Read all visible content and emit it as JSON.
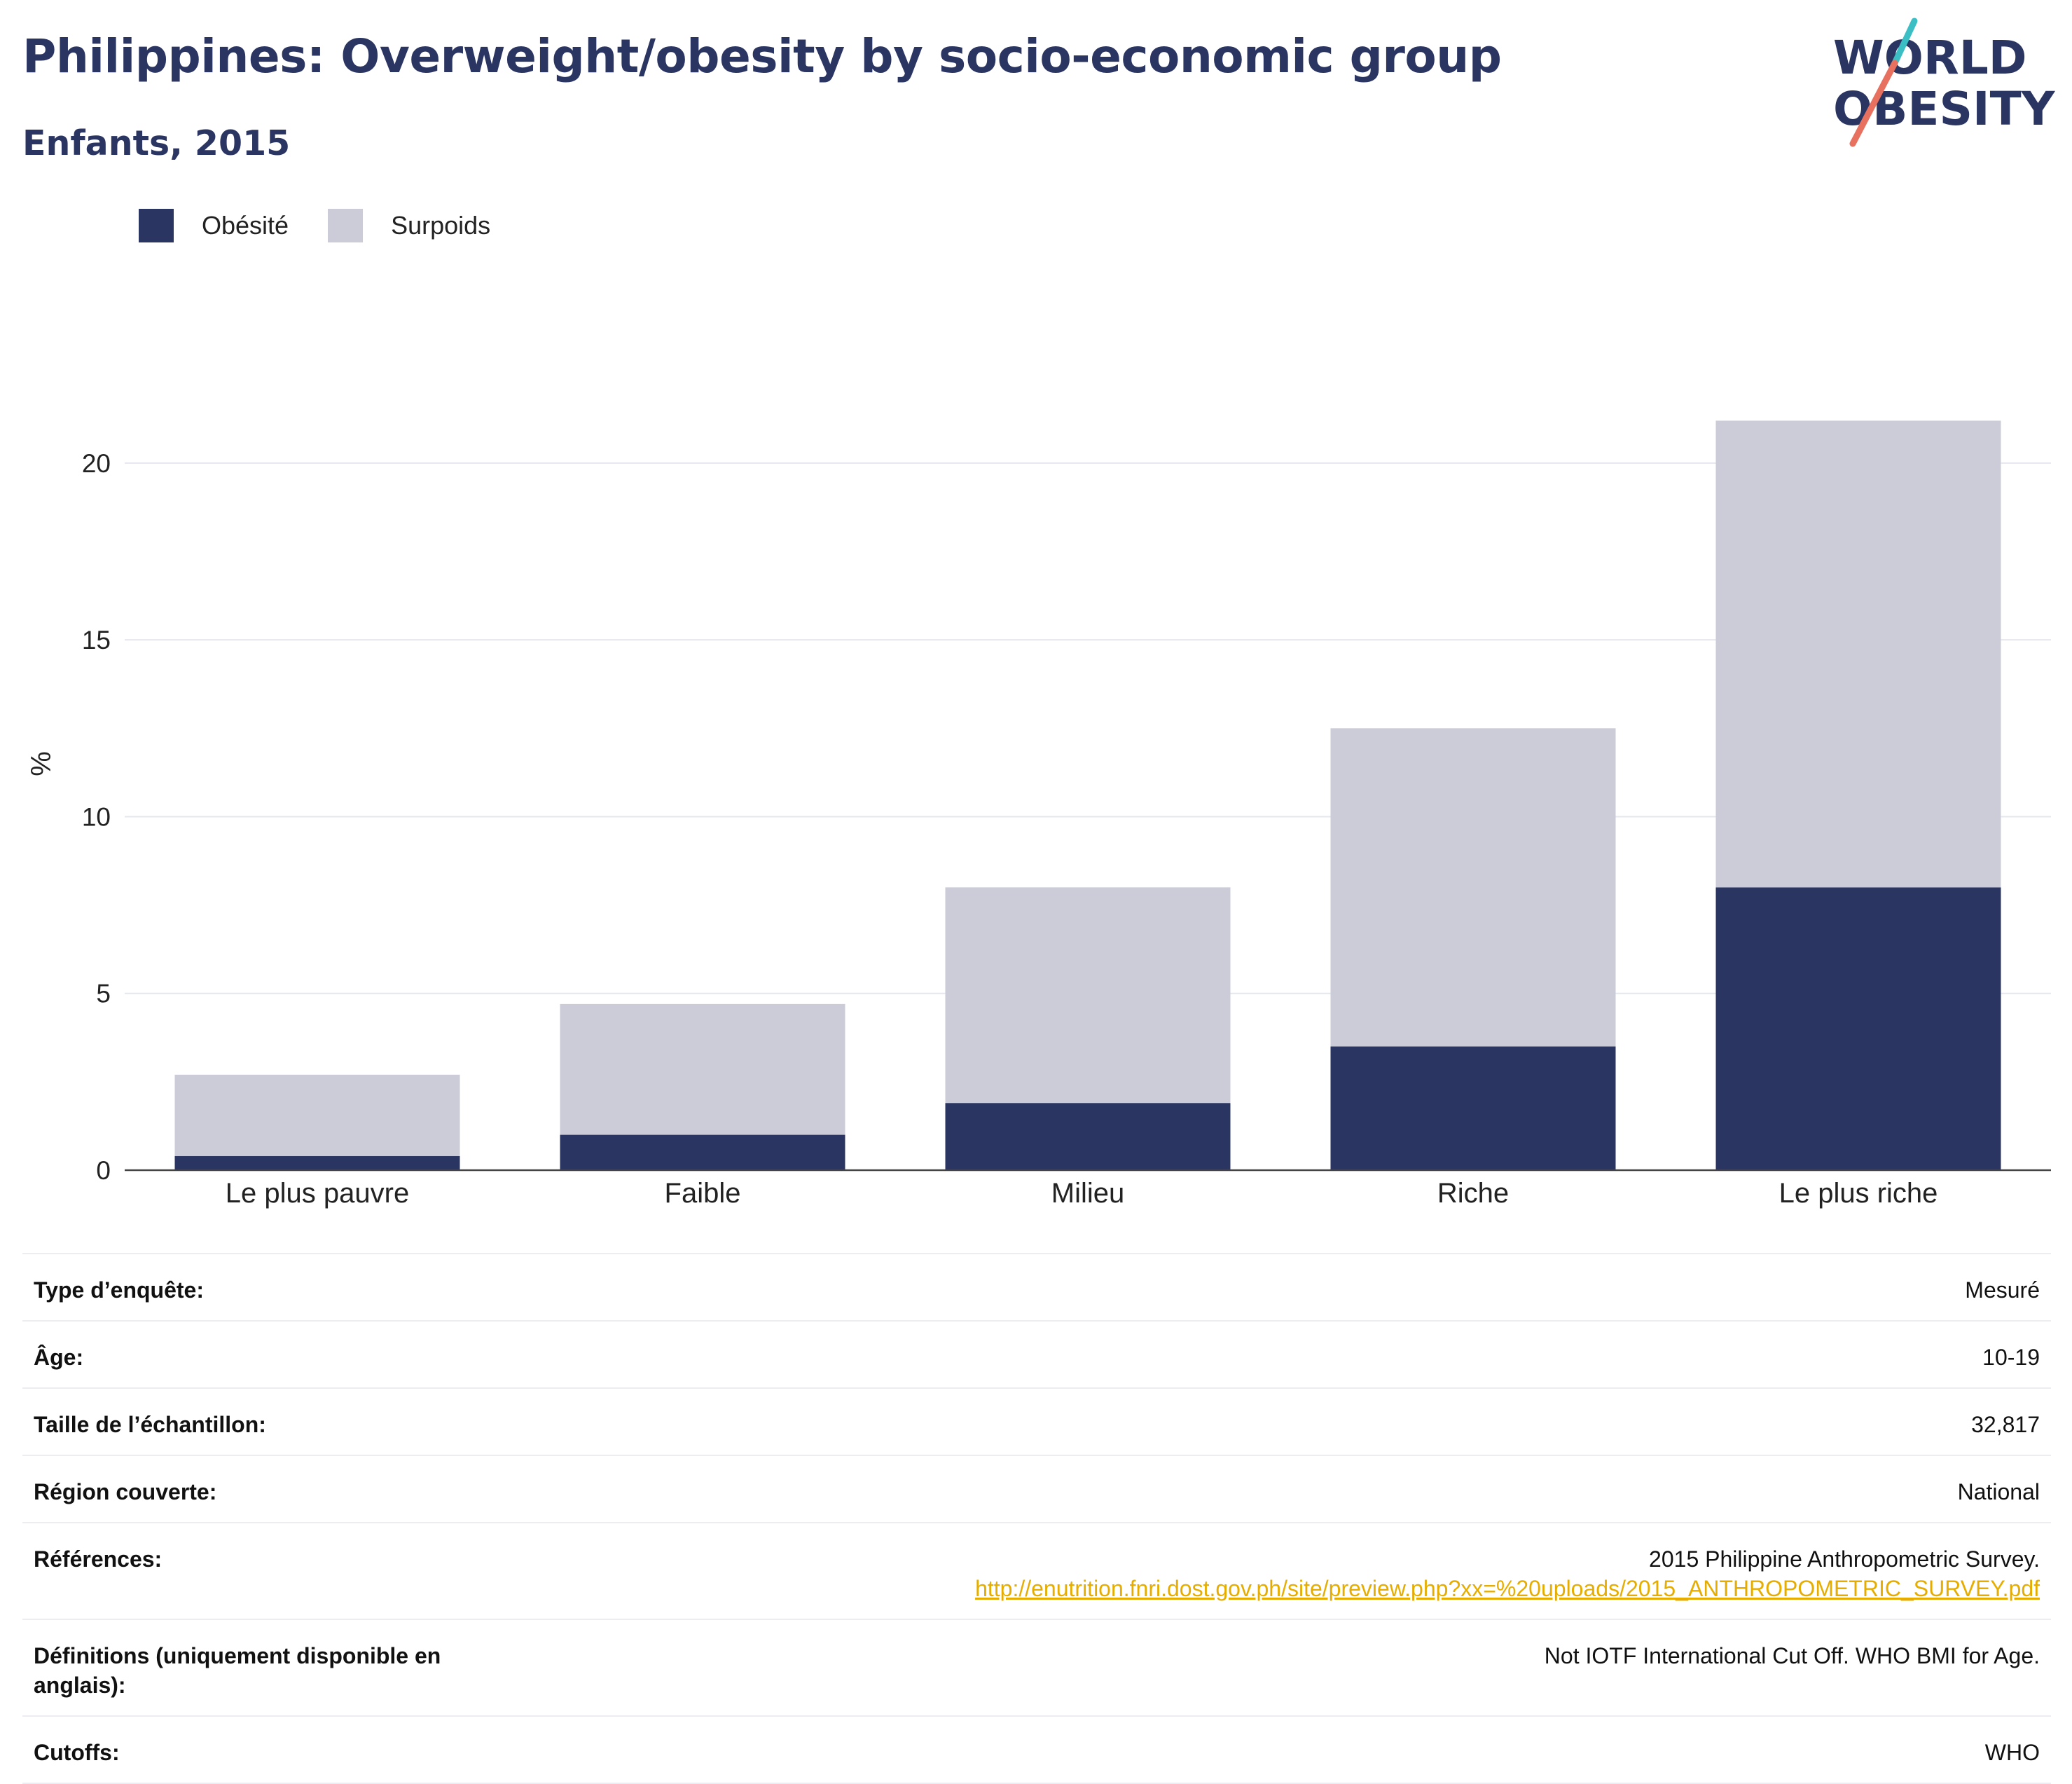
{
  "header": {
    "title": "Philippines: Overweight/obesity by socio-economic group",
    "subtitle": "Enfants, 2015"
  },
  "logo": {
    "line1": "WORLD",
    "line2": "OBESITY",
    "colors": {
      "text": "#2b3562",
      "slash_top": "#3cbfc4",
      "slash_bottom": "#e8705f"
    }
  },
  "legend": [
    {
      "label": "Obésité",
      "color": "#2b3562"
    },
    {
      "label": "Surpoids",
      "color": "#cbccd7"
    }
  ],
  "chart_data": {
    "type": "bar",
    "stacked": true,
    "categories": [
      "Le plus pauvre",
      "Faible",
      "Milieu",
      "Riche",
      "Le plus riche"
    ],
    "series": [
      {
        "name": "Obésité",
        "values": [
          0.4,
          1.0,
          1.9,
          3.5,
          8.0
        ],
        "color": "#2b3562"
      },
      {
        "name": "Surpoids",
        "values": [
          2.3,
          3.7,
          6.1,
          9.0,
          13.2
        ],
        "color": "#cbccd7"
      }
    ],
    "ylabel": "%",
    "ylim": [
      0,
      22
    ],
    "yticks": [
      0,
      5,
      10,
      15,
      20
    ],
    "grid": true
  },
  "info": [
    {
      "label": "Type d’enquête:",
      "value": "Mesuré"
    },
    {
      "label": "Âge:",
      "value": "10-19"
    },
    {
      "label": "Taille de l’échantillon:",
      "value": "32,817"
    },
    {
      "label": "Région couverte:",
      "value": "National"
    },
    {
      "label": "Références:",
      "value": "2015 Philippine Anthropometric Survey.",
      "link": "http://enutrition.fnri.dost.gov.ph/site/preview.php?xx=%20uploads/2015_ANTHROPOMETRIC_SURVEY.pdf"
    },
    {
      "label": "Définitions (uniquement disponible en anglais):",
      "value": "Not IOTF International Cut Off. WHO BMI for Age."
    },
    {
      "label": "Cutoffs:",
      "value": "WHO"
    }
  ]
}
